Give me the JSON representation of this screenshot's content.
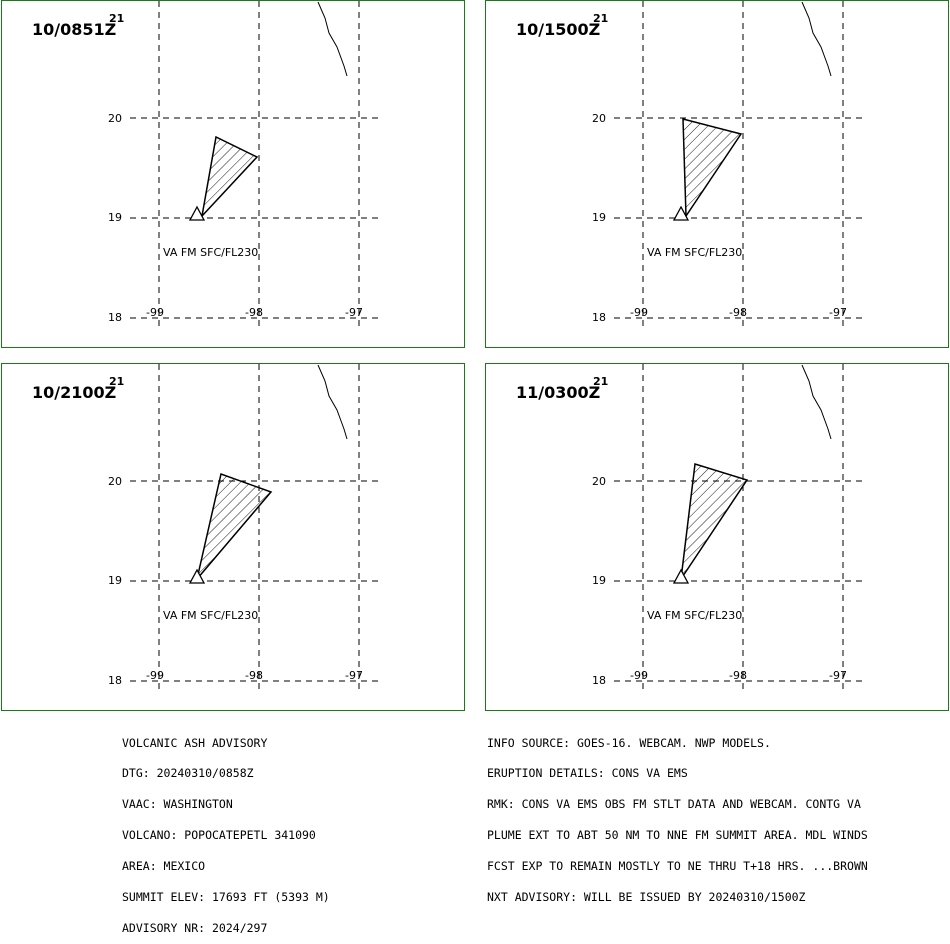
{
  "panels": [
    {
      "title": "10/0851Z",
      "top_lat_label": "21",
      "label": "VA FM SFC/FL230",
      "lat_labels": [
        "20",
        "19",
        "18"
      ],
      "lon_labels": [
        "-99",
        "-98",
        "-97"
      ],
      "polygon": [
        [
          -98.57,
          19.02
        ],
        [
          -98.43,
          19.81
        ],
        [
          -98.02,
          19.61
        ]
      ]
    },
    {
      "title": "10/1500Z",
      "top_lat_label": "21",
      "label": "VA FM SFC/FL230",
      "lat_labels": [
        "20",
        "19",
        "18"
      ],
      "lon_labels": [
        "-99",
        "-98",
        "-97"
      ],
      "polygon": [
        [
          -98.57,
          19.02
        ],
        [
          -98.6,
          19.99
        ],
        [
          -98.02,
          19.84
        ]
      ]
    },
    {
      "title": "10/2100Z",
      "top_lat_label": "21",
      "label": "VA FM SFC/FL230",
      "lat_labels": [
        "20",
        "19",
        "18"
      ],
      "lon_labels": [
        "-99",
        "-98",
        "-97"
      ],
      "polygon": [
        [
          -98.62,
          19.02
        ],
        [
          -98.38,
          20.07
        ],
        [
          -97.88,
          19.89
        ]
      ]
    },
    {
      "title": "11/0300Z",
      "top_lat_label": "21",
      "label": "VA FM SFC/FL230",
      "lat_labels": [
        "20",
        "19",
        "18"
      ],
      "lon_labels": [
        "-99",
        "-98",
        "-97"
      ],
      "polygon": [
        [
          -98.62,
          19.02
        ],
        [
          -98.48,
          20.17
        ],
        [
          -97.96,
          20.01
        ]
      ]
    }
  ],
  "volcano_position": [
    -98.62,
    19.02
  ],
  "coastline": [
    [
      -97.41,
      21.16
    ],
    [
      -97.34,
      21.0
    ],
    [
      -97.3,
      20.85
    ],
    [
      -97.22,
      20.71
    ],
    [
      -97.15,
      20.52
    ],
    [
      -97.12,
      20.42
    ]
  ],
  "text_left": [
    "VOLCANIC ASH ADVISORY",
    "DTG: 20240310/0858Z",
    "VAAC: WASHINGTON",
    "VOLCANO: POPOCATEPETL 341090",
    "AREA: MEXICO",
    "SUMMIT ELEV: 17693 FT (5393 M)",
    "ADVISORY NR: 2024/297"
  ],
  "text_right": [
    "INFO SOURCE: GOES-16. WEBCAM. NWP MODELS.",
    "ERUPTION DETAILS: CONS VA EMS",
    "RMK: CONS VA EMS OBS FM STLT DATA AND WEBCAM. CONTG VA",
    "PLUME EXT TO ABT 50 NM TO NNE FM SUMMIT AREA. MDL WINDS",
    "FCST EXP TO REMAIN MOSTLY TO NE THRU T+18 HRS. ...BROWN",
    "NXT ADVISORY: WILL BE ISSUED BY 20240310/1500Z"
  ],
  "colors": {
    "border": "#1a7a1a",
    "lines": "#000000"
  }
}
